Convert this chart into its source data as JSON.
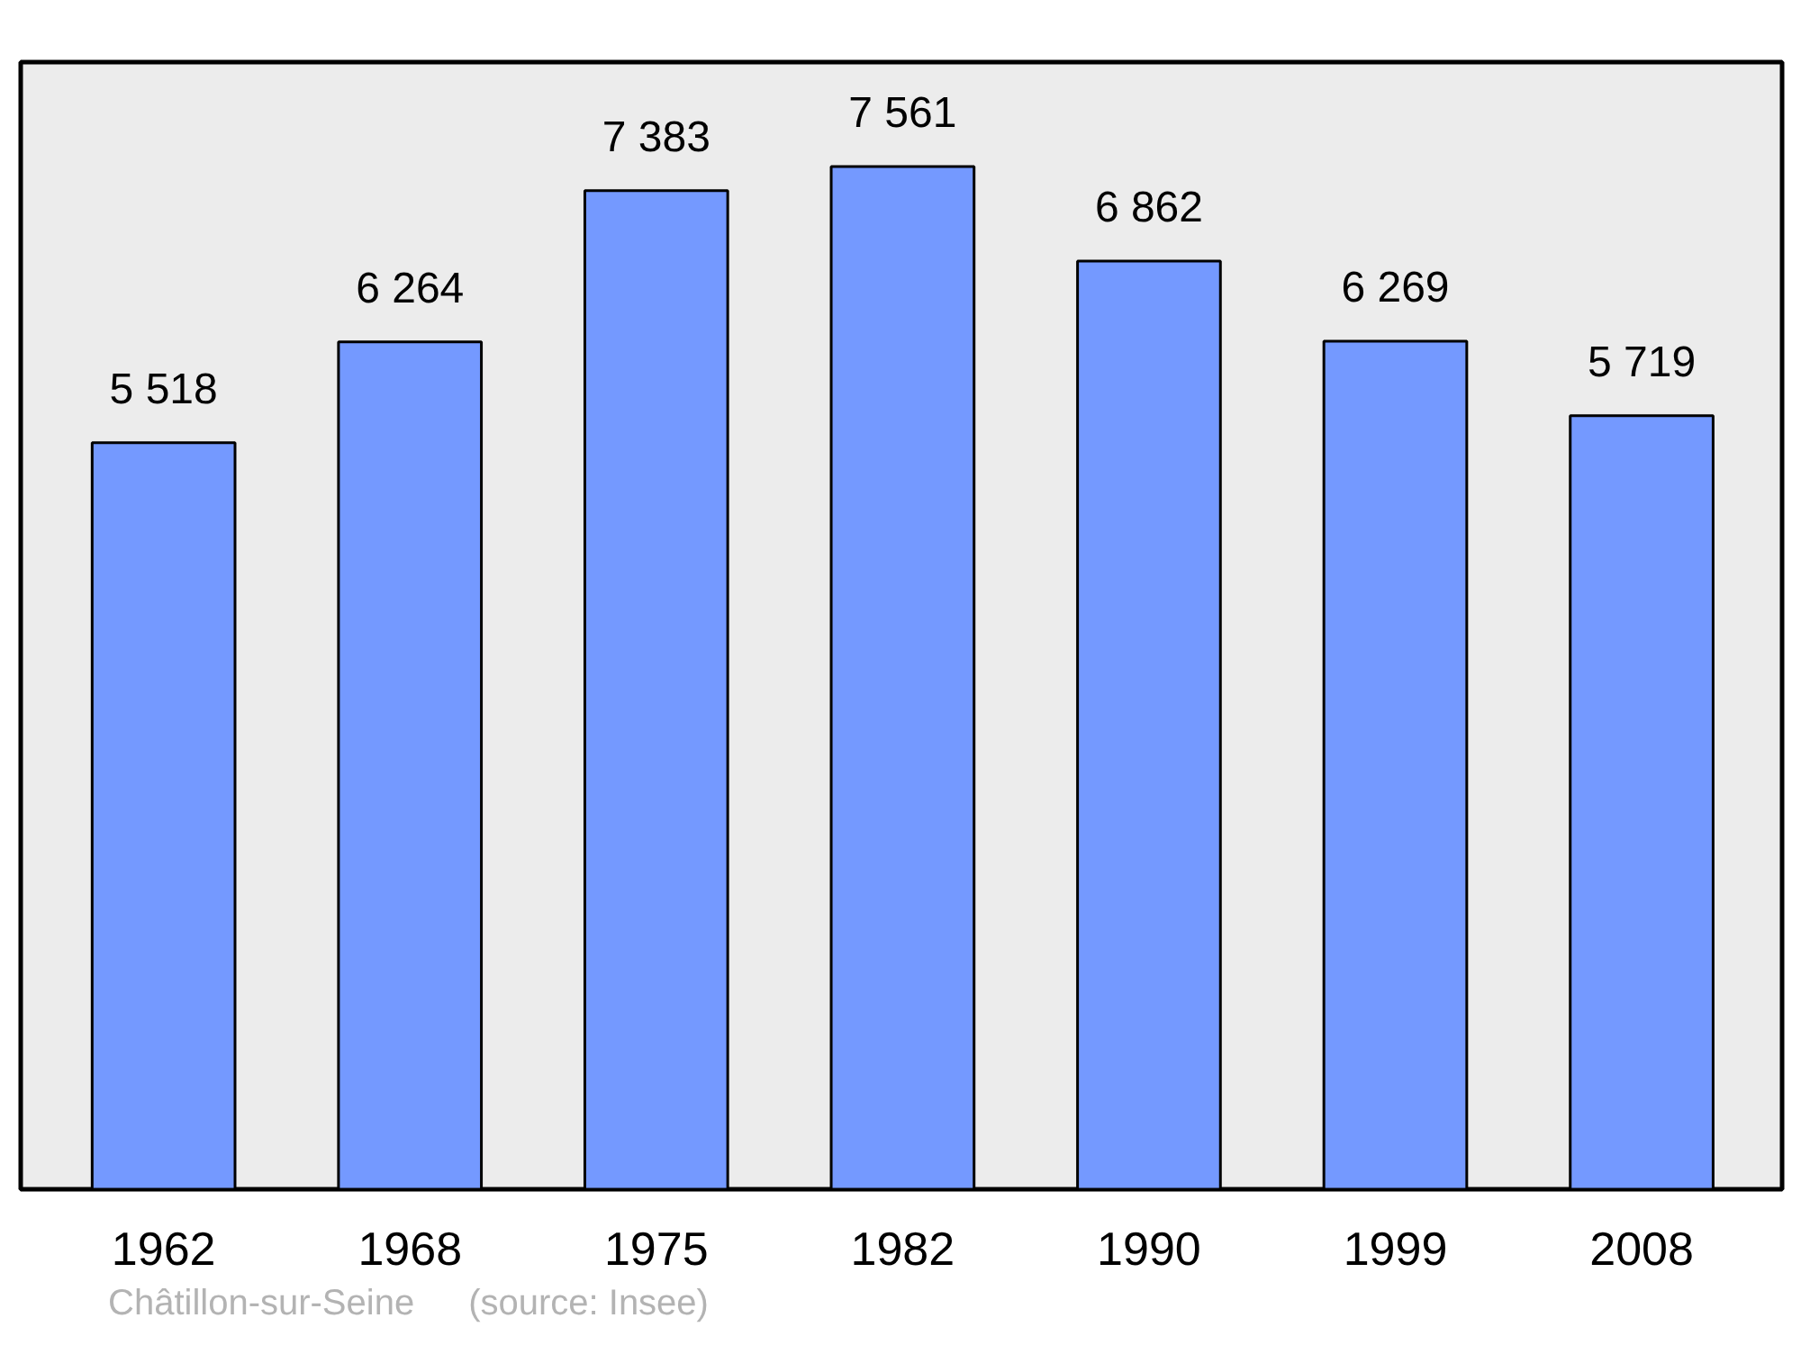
{
  "chart_data": {
    "type": "bar",
    "categories": [
      "1962",
      "1968",
      "1975",
      "1982",
      "1990",
      "1999",
      "2008"
    ],
    "values": [
      5518,
      6264,
      7383,
      7561,
      6862,
      6269,
      5719
    ],
    "value_labels": [
      "5 518",
      "6 264",
      "7 383",
      "7 561",
      "6 862",
      "6 269",
      "5 719"
    ],
    "color": "#7499ff",
    "grid": false,
    "annotations": [
      "Châtillon-sur-Seine",
      "(source: Insee)"
    ]
  }
}
